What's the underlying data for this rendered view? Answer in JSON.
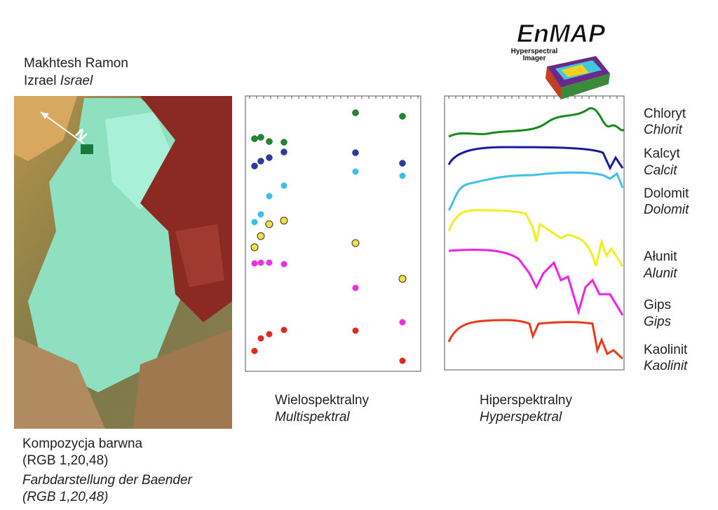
{
  "location": {
    "name": "Makhtesh Ramon",
    "country_pl": "Izrael",
    "country_de": "Israel"
  },
  "north": "N",
  "logo": {
    "title": "EnMAP",
    "subtitle_1": "Hyperspectral",
    "subtitle_2": "Imager"
  },
  "panels": [
    {
      "label_pl": "Wielospektralny",
      "label_de": "Multispektral"
    },
    {
      "label_pl": "Hiperspektralny",
      "label_de": "Hyperspektral"
    }
  ],
  "minerals": [
    {
      "pl": "Chloryt",
      "de": "Chlorit"
    },
    {
      "pl": "Kalcyt",
      "de": "Calcit"
    },
    {
      "pl": "Dolomit",
      "de": "Dolomit"
    },
    {
      "pl": "Ałunit",
      "de": "Alunit"
    },
    {
      "pl": "Gips",
      "de": "Gips"
    },
    {
      "pl": "Kaolinit",
      "de": "Kaolinit"
    }
  ],
  "image_caption": {
    "pl": "Kompozycja barwna",
    "pl_bands": "(RGB 1,20,48)",
    "de": "Farbdarstellung der Baender",
    "de_bands": "(RGB 1,20,48)"
  }
}
